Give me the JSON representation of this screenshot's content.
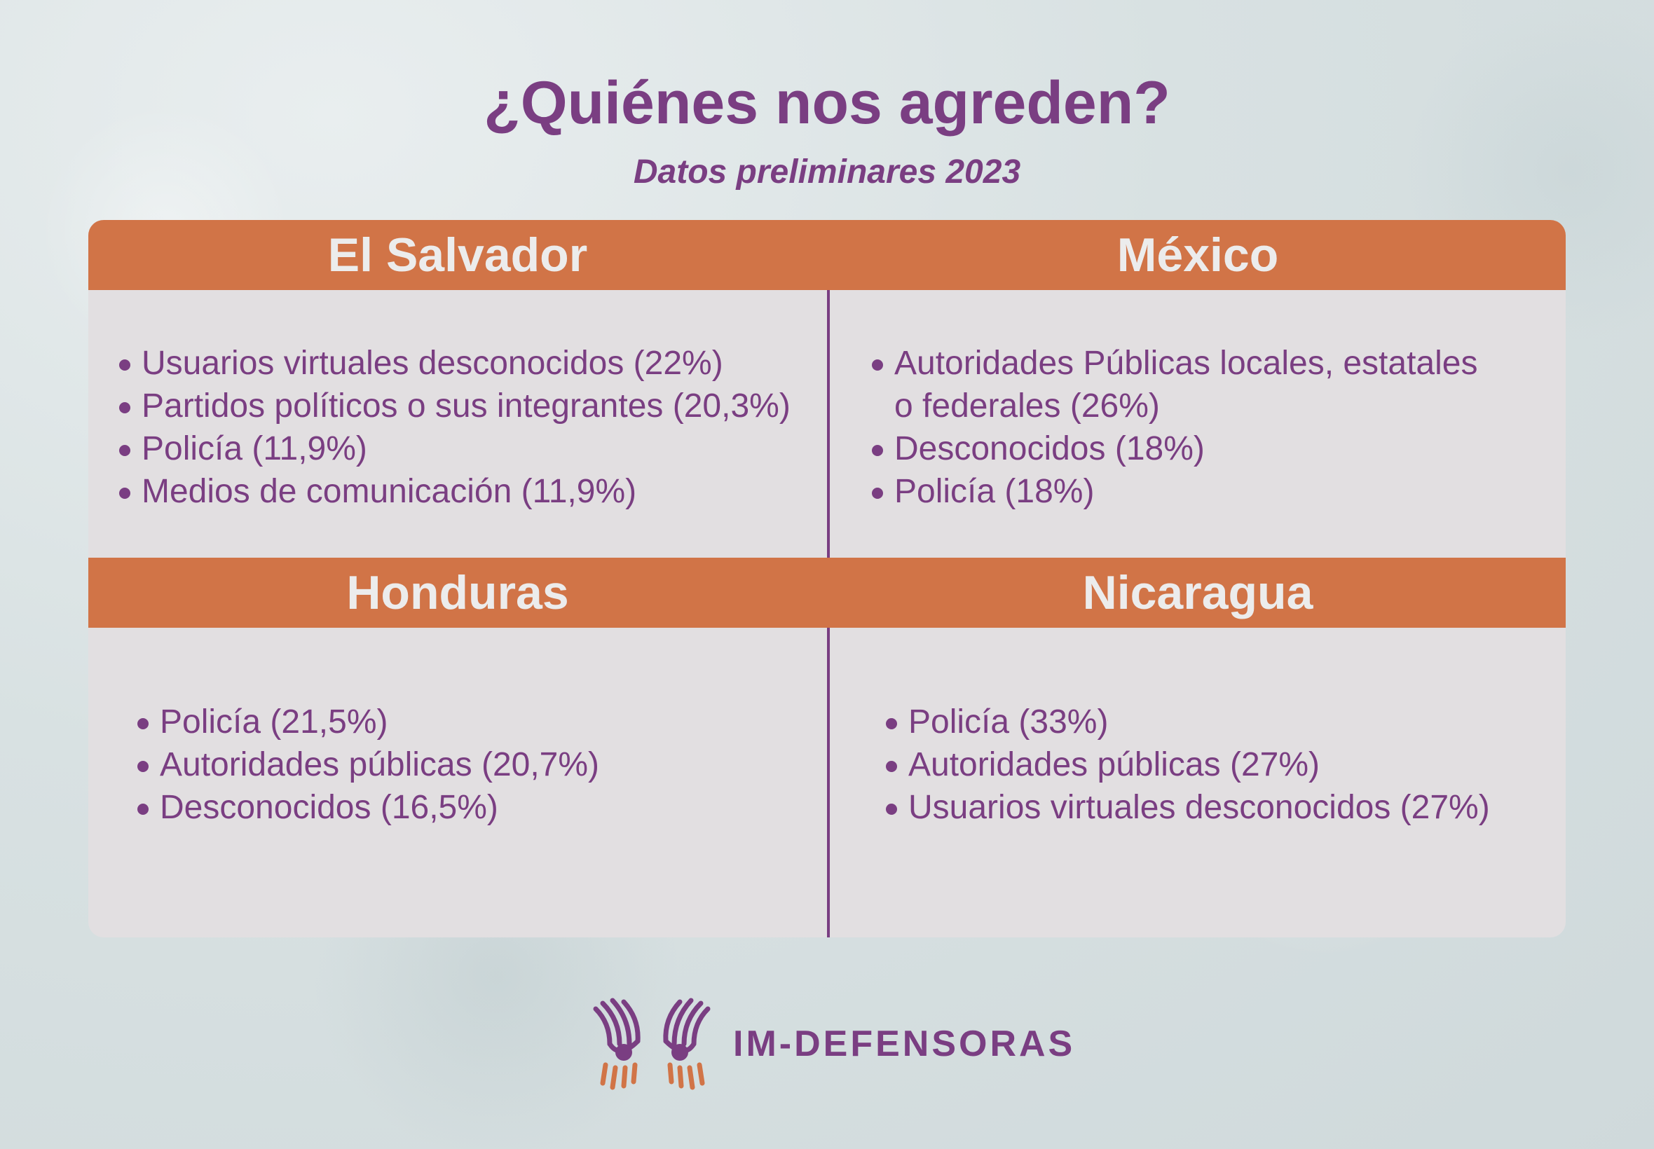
{
  "header": {
    "title": "¿Quiénes nos agreden?",
    "subtitle": "Datos preliminares 2023"
  },
  "colors": {
    "accent": "#d17447",
    "brand": "#7a3e82",
    "panel": "#e2dfe1"
  },
  "countries": [
    {
      "name": "El Salvador",
      "items": [
        "Usuarios virtuales desconocidos (22%)",
        "Partidos políticos o sus integrantes (20,3%)",
        "Policía (11,9%)",
        "Medios de comunicación (11,9%)"
      ]
    },
    {
      "name": "México",
      "items": [
        "Autoridades Públicas locales, estatales o federales (26%)",
        "Desconocidos (18%)",
        "Policía (18%)"
      ]
    },
    {
      "name": "Honduras",
      "items": [
        "Policía (21,5%)",
        "Autoridades públicas (20,7%)",
        "Desconocidos (16,5%)"
      ]
    },
    {
      "name": "Nicaragua",
      "items": [
        "Policía (33%)",
        "Autoridades públicas (27%)",
        "Usuarios virtuales desconocidos (27%)"
      ]
    }
  ],
  "logo": {
    "text": "IM-DEFENSORAS",
    "icon": "hands-logo-icon"
  }
}
